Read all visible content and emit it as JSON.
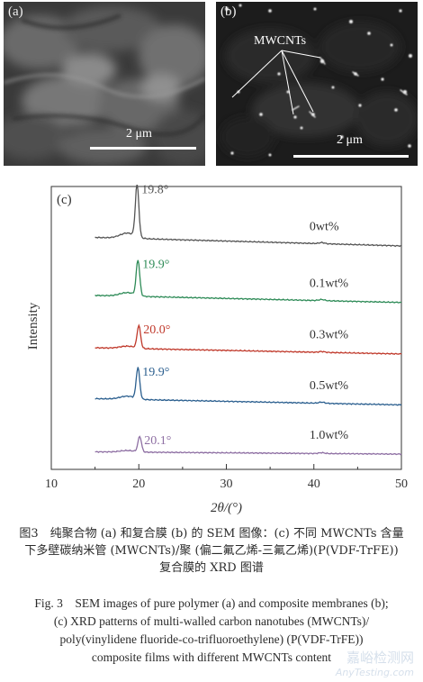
{
  "panels": {
    "a": {
      "label": "(a)",
      "scale_bar": "2 μm"
    },
    "b": {
      "label": "(b)",
      "scale_bar": "2 μm",
      "annotation": "MWCNTs"
    }
  },
  "chart_data": {
    "type": "line",
    "panel_label": "(c)",
    "xlabel": "2θ/(°)",
    "ylabel": "Intensity",
    "xlim": [
      10,
      50
    ],
    "xticks": [
      10,
      20,
      30,
      40,
      50
    ],
    "series": [
      {
        "name": "0wt%",
        "peak_label": "19.8°",
        "peak_x": 19.8,
        "peak_height": 0.185,
        "baseline_at_15": 0.04,
        "baseline_at_50": 0.01,
        "bump_at_41": 0.004,
        "color": "#555555"
      },
      {
        "name": "0.1wt%",
        "peak_label": "19.9°",
        "peak_x": 19.9,
        "peak_height": 0.125,
        "baseline_at_15": 0.035,
        "baseline_at_50": 0.01,
        "bump_at_41": 0.004,
        "color": "#2e8b57"
      },
      {
        "name": "0.3wt%",
        "peak_label": "20.0°",
        "peak_x": 20.0,
        "peak_height": 0.08,
        "baseline_at_15": 0.03,
        "baseline_at_50": 0.008,
        "bump_at_41": 0.003,
        "color": "#c0392b"
      },
      {
        "name": "0.5wt%",
        "peak_label": "19.9°",
        "peak_x": 19.9,
        "peak_height": 0.11,
        "baseline_at_15": 0.03,
        "baseline_at_50": 0.008,
        "bump_at_41": 0.004,
        "color": "#2b5f8f"
      },
      {
        "name": "1.0wt%",
        "peak_label": "20.1°",
        "peak_x": 20.1,
        "peak_height": 0.055,
        "baseline_at_15": 0.012,
        "baseline_at_50": 0.004,
        "bump_at_41": 0.003,
        "color": "#8e6fa3"
      }
    ],
    "offsets": [
      0.78,
      0.58,
      0.4,
      0.22,
      0.05
    ]
  },
  "caption": {
    "cn_lines": [
      "图3　纯聚合物 (a) 和复合膜 (b) 的 SEM 图像：(c) 不同 MWCNTs 含量",
      "下多壁碳纳米管 (MWCNTs)/聚 (偏二氟乙烯-三氟乙烯)(P(VDF-TrFE))",
      "复合膜的 XRD 图谱"
    ],
    "en_lines": [
      "Fig. 3　SEM images of pure polymer (a) and composite membranes (b);",
      "(c) XRD patterns of multi-walled carbon nanotubes (MWCNTs)/",
      "poly(vinylidene fluoride-co-trifluoroethylene) (P(VDF-TrFE))",
      "composite films with different MWCNTs content"
    ]
  },
  "watermark": {
    "line1": "嘉峪检测网",
    "line2": "AnyTesting.com"
  }
}
